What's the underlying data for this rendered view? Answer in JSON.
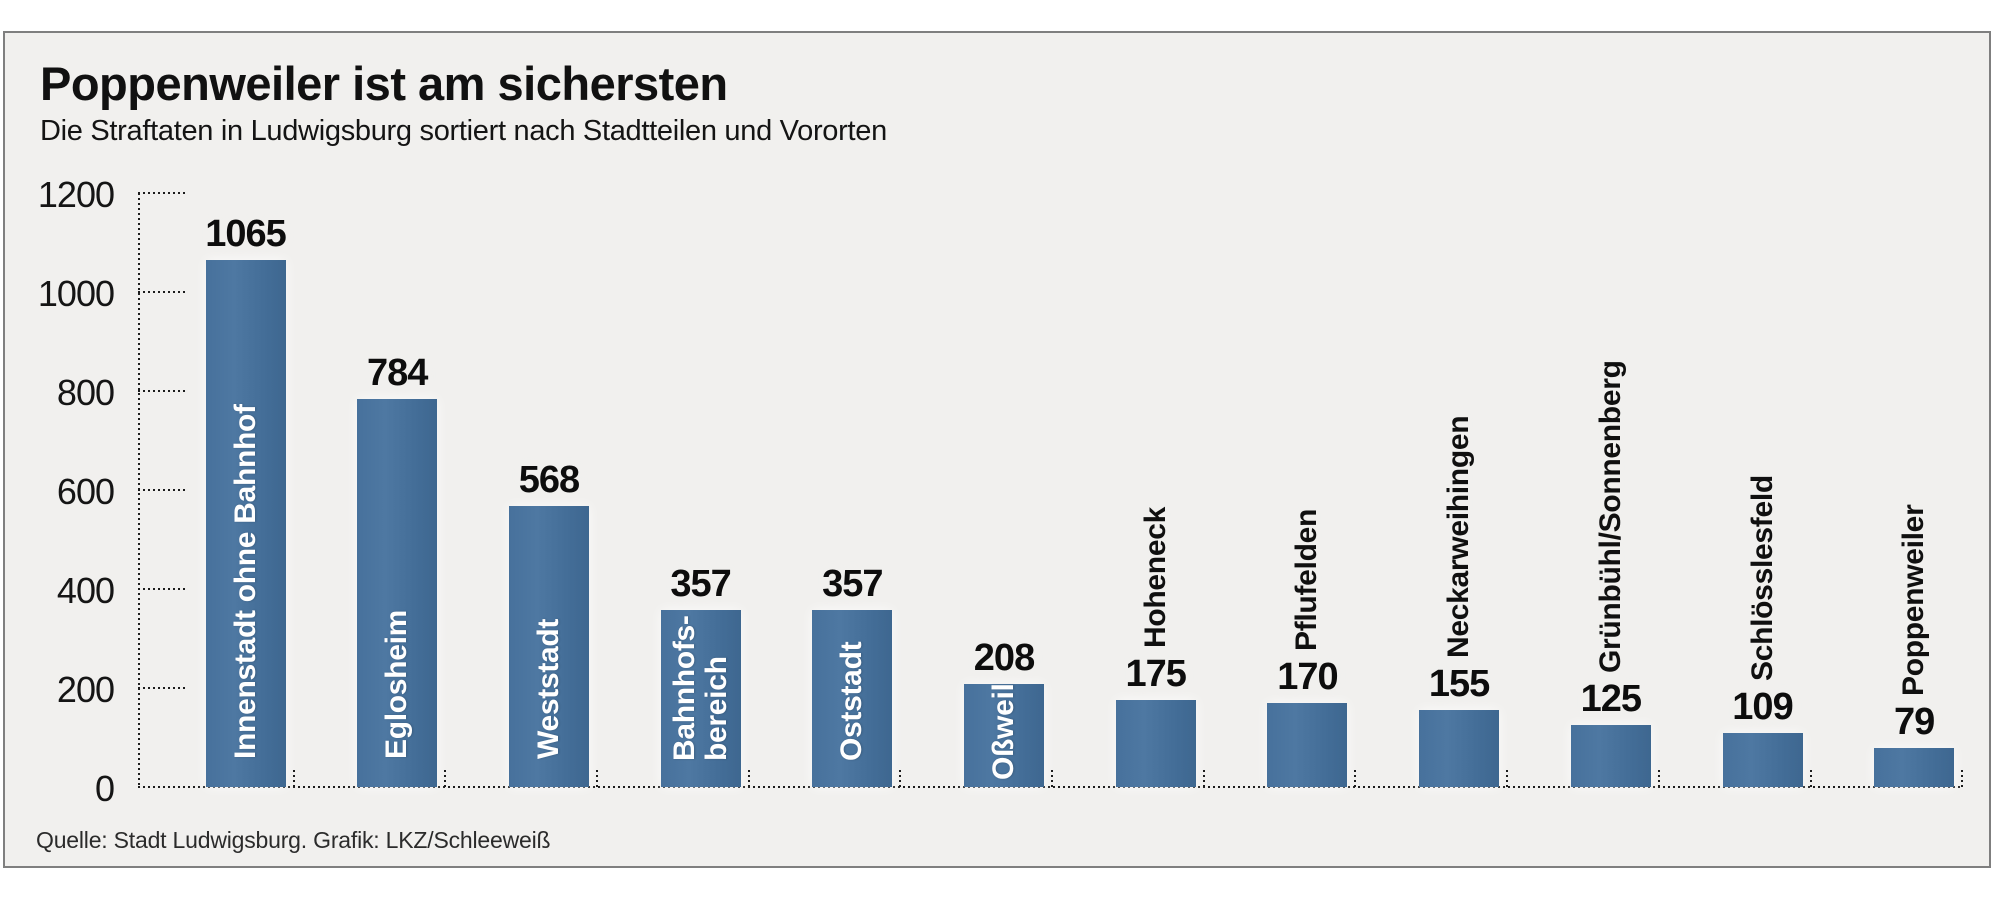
{
  "panel": {
    "bg": "#f1f0ee",
    "border_color": "#7f7f7f"
  },
  "chart_data": {
    "type": "bar",
    "title": "Poppenweiler ist am sichersten",
    "subtitle": "Die Straftaten in Ludwigsburg sortiert nach Stadtteilen und Vororten",
    "source": "Quelle: Stadt Ludwigsburg. Grafik: LKZ/Schleeweiß",
    "categories": [
      "Innenstadt ohne Bahnhof",
      "Eglosheim",
      "Weststadt",
      "Bahnhofsbereich",
      "Oststadt",
      "Oßweil",
      "Hoheneck",
      "Pflufelden",
      "Neckarweihingen",
      "Grünbühl/Sonnenberg",
      "Schlösslesfeld",
      "Poppenweiler"
    ],
    "values": [
      1065,
      784,
      568,
      357,
      357,
      208,
      175,
      170,
      155,
      125,
      109,
      79
    ],
    "bars": [
      {
        "name": "Innenstadt ohne Bahnhof",
        "display_name": "Innenstadt ohne Bahnhof",
        "value": 1065,
        "value_label": "1065",
        "name_placement": "inside",
        "pad": 28
      },
      {
        "name": "Eglosheim",
        "display_name": "Eglosheim",
        "value": 784,
        "value_label": "784",
        "name_placement": "inside",
        "pad": 28
      },
      {
        "name": "Weststadt",
        "display_name": "Weststadt",
        "value": 568,
        "value_label": "568",
        "name_placement": "inside",
        "pad": 28
      },
      {
        "name": "Bahnhofsbereich",
        "display_name": "Bahnhofs-\nbereich",
        "value": 357,
        "value_label": "357",
        "name_placement": "inside",
        "pad": 26
      },
      {
        "name": "Oststadt",
        "display_name": "Oststadt",
        "value": 357,
        "value_label": "357",
        "name_placement": "inside",
        "pad": 26
      },
      {
        "name": "Oßweil",
        "display_name": "Oßweil",
        "value": 208,
        "value_label": "208",
        "name_placement": "inside",
        "pad": 7
      },
      {
        "name": "Hoheneck",
        "display_name": "Hoheneck",
        "value": 175,
        "value_label": "175",
        "name_placement": "above",
        "pad": 0
      },
      {
        "name": "Pflufelden",
        "display_name": "Pflufelden",
        "value": 170,
        "value_label": "170",
        "name_placement": "above",
        "pad": 0
      },
      {
        "name": "Neckarweihingen",
        "display_name": "Neckarweihingen",
        "value": 155,
        "value_label": "155",
        "name_placement": "above",
        "pad": 0
      },
      {
        "name": "Grünbühl/Sonnenberg",
        "display_name": "Grünbühl/Sonnenberg",
        "value": 125,
        "value_label": "125",
        "name_placement": "above",
        "pad": 0
      },
      {
        "name": "Schlösslesfeld",
        "display_name": "Schlösslesfeld",
        "value": 109,
        "value_label": "109",
        "name_placement": "above",
        "pad": 0
      },
      {
        "name": "Poppenweiler",
        "display_name": "Poppenweiler",
        "value": 79,
        "value_label": "79",
        "name_placement": "above",
        "pad": 0
      }
    ],
    "yticks": [
      "1200",
      "1000",
      "800",
      "600",
      "400",
      "200",
      "0"
    ],
    "ylim": [
      0,
      1200
    ],
    "xlabel": "",
    "ylabel": "",
    "legend": "none",
    "grid": "dotted axis ticks and dotted baseline",
    "bar_color": "#44719b",
    "value_label_color": "#0d0d0d",
    "name_label_color_inside": "#ffffff",
    "name_label_color_above": "#101010"
  }
}
